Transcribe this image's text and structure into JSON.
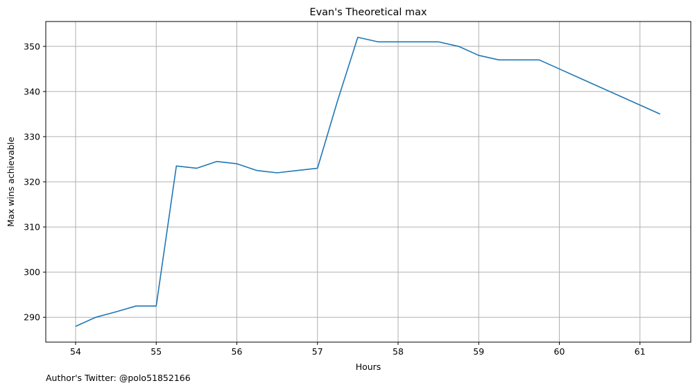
{
  "chart_data": {
    "type": "line",
    "title": "Evan's Theoretical max",
    "xlabel": "Hours",
    "ylabel": "Max wins achievable",
    "xlim": [
      53.63,
      61.63
    ],
    "ylim": [
      284.5,
      355.5
    ],
    "xticks": [
      54,
      55,
      56,
      57,
      58,
      59,
      60,
      61
    ],
    "yticks": [
      290,
      300,
      310,
      320,
      330,
      340,
      350
    ],
    "grid": true,
    "series": [
      {
        "color": "#1f77b4",
        "x": [
          54,
          54.25,
          54.5,
          54.75,
          55,
          55.25,
          55.5,
          55.75,
          56,
          56.25,
          56.5,
          56.75,
          57,
          57.25,
          57.5,
          57.75,
          58,
          58.25,
          58.5,
          58.75,
          59,
          59.25,
          59.5,
          59.75,
          60,
          60.25,
          60.5,
          60.75,
          61,
          61.25
        ],
        "y": [
          288,
          290,
          291.2,
          292.5,
          292.5,
          323.5,
          323,
          324.5,
          324,
          322.5,
          322,
          322.5,
          323,
          338,
          352,
          351,
          351,
          351,
          351,
          350,
          348,
          347,
          347,
          347,
          345,
          343,
          341,
          339,
          337,
          335
        ]
      }
    ]
  },
  "footer": {
    "text": "Author's Twitter: @polo51852166"
  }
}
